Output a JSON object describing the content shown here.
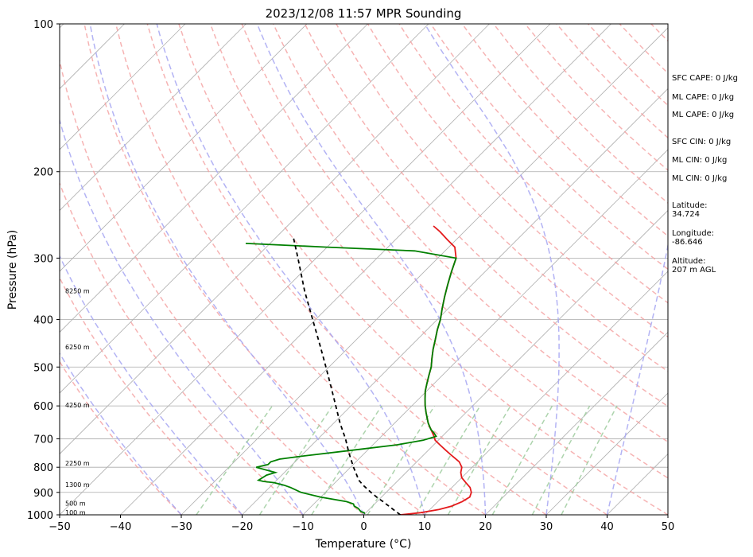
{
  "chart_data": {
    "type": "line",
    "title": "2023/12/08 11:57 MPR Sounding",
    "xlabel": "Temperature (°C)",
    "ylabel": "Pressure (hPa)",
    "xlim": [
      -50,
      50
    ],
    "ylim": [
      1000,
      100
    ],
    "y_scale": "log",
    "skew": "skew-T",
    "x_ticks": [
      "−50",
      "−40",
      "−30",
      "−20",
      "−10",
      "0",
      "10",
      "20",
      "30",
      "40",
      "50"
    ],
    "y_ticks": [
      "100",
      "200",
      "300",
      "400",
      "500",
      "600",
      "700",
      "800",
      "900",
      "1000"
    ],
    "grid": true,
    "height_labels": [
      {
        "text": "8250 m",
        "pressure": 350
      },
      {
        "text": "6250 m",
        "pressure": 455
      },
      {
        "text": "4250 m",
        "pressure": 597
      },
      {
        "text": "2250 m",
        "pressure": 785
      },
      {
        "text": "1300 m",
        "pressure": 867
      },
      {
        "text": "500 m",
        "pressure": 947
      },
      {
        "text": "100 m",
        "pressure": 989
      }
    ],
    "series": [
      {
        "color": "#e41a1c",
        "points": [
          [
            1000,
            6.0
          ],
          [
            990,
            9.0
          ],
          [
            975,
            11.5
          ],
          [
            960,
            13.0
          ],
          [
            940,
            14.0
          ],
          [
            920,
            14.5
          ],
          [
            900,
            14.0
          ],
          [
            880,
            13.0
          ],
          [
            860,
            11.5
          ],
          [
            840,
            10.0
          ],
          [
            820,
            9.0
          ],
          [
            800,
            8.3
          ],
          [
            780,
            7.0
          ],
          [
            760,
            5.0
          ],
          [
            740,
            3.0
          ],
          [
            720,
            1.0
          ],
          [
            705,
            -0.5
          ],
          [
            690,
            -1.5
          ],
          [
            670,
            -3.0
          ],
          [
            650,
            -4.5
          ],
          [
            620,
            -6.5
          ],
          [
            600,
            -7.8
          ],
          [
            580,
            -9.0
          ],
          [
            560,
            -10.2
          ],
          [
            540,
            -11.2
          ],
          [
            520,
            -12.2
          ],
          [
            500,
            -13.2
          ],
          [
            480,
            -14.5
          ],
          [
            460,
            -15.8
          ],
          [
            440,
            -17.0
          ],
          [
            420,
            -18.3
          ],
          [
            400,
            -19.5
          ],
          [
            380,
            -21.0
          ],
          [
            360,
            -22.5
          ],
          [
            340,
            -24.0
          ],
          [
            320,
            -25.5
          ],
          [
            300,
            -27.0
          ],
          [
            285,
            -29.0
          ],
          [
            275,
            -31.5
          ],
          [
            265,
            -34.0
          ],
          [
            258,
            -36.0
          ]
        ]
      },
      {
        "color": "#008000",
        "points": [
          [
            995,
            0.0
          ],
          [
            990,
            -0.3
          ],
          [
            985,
            -1.0
          ],
          [
            970,
            -2.0
          ],
          [
            960,
            -3.0
          ],
          [
            950,
            -3.5
          ],
          [
            940,
            -5.0
          ],
          [
            920,
            -10.0
          ],
          [
            900,
            -14.0
          ],
          [
            880,
            -16.5
          ],
          [
            870,
            -18.0
          ],
          [
            860,
            -20.0
          ],
          [
            855,
            -22.0
          ],
          [
            850,
            -23.0
          ],
          [
            830,
            -22.5
          ],
          [
            820,
            -21.5
          ],
          [
            810,
            -23.5
          ],
          [
            800,
            -25.5
          ],
          [
            790,
            -24.0
          ],
          [
            780,
            -24.0
          ],
          [
            770,
            -23.0
          ],
          [
            760,
            -20.0
          ],
          [
            740,
            -13.0
          ],
          [
            720,
            -6.0
          ],
          [
            705,
            -2.5
          ],
          [
            692,
            -1.0
          ],
          [
            680,
            -2.0
          ],
          [
            670,
            -3.0
          ],
          [
            650,
            -4.5
          ],
          [
            620,
            -6.5
          ],
          [
            600,
            -7.8
          ],
          [
            580,
            -9.0
          ],
          [
            560,
            -10.2
          ],
          [
            540,
            -11.2
          ],
          [
            520,
            -12.2
          ],
          [
            500,
            -13.2
          ],
          [
            480,
            -14.5
          ],
          [
            460,
            -15.8
          ],
          [
            440,
            -17.0
          ],
          [
            420,
            -18.3
          ],
          [
            400,
            -19.5
          ],
          [
            380,
            -21.0
          ],
          [
            360,
            -22.5
          ],
          [
            340,
            -24.0
          ],
          [
            320,
            -25.5
          ],
          [
            300,
            -27.0
          ],
          [
            290,
            -35.0
          ],
          [
            285,
            -50.0
          ],
          [
            280,
            -64.0
          ]
        ]
      },
      {
        "color": "#000000",
        "dashed": true,
        "points": [
          [
            1000,
            6.0
          ],
          [
            960,
            2.7
          ],
          [
            940,
            1.0
          ],
          [
            920,
            -0.8
          ],
          [
            900,
            -2.5
          ],
          [
            870,
            -5.0
          ],
          [
            850,
            -6.5
          ],
          [
            800,
            -9.5
          ],
          [
            750,
            -12.5
          ],
          [
            700,
            -15.5
          ],
          [
            650,
            -19.0
          ],
          [
            600,
            -22.5
          ],
          [
            550,
            -26.3
          ],
          [
            500,
            -30.5
          ],
          [
            450,
            -35.2
          ],
          [
            400,
            -40.5
          ],
          [
            350,
            -46.5
          ],
          [
            300,
            -53.0
          ],
          [
            270,
            -57.5
          ]
        ]
      }
    ],
    "side_text": {
      "sfc_cape": "SFC CAPE: 0 J/kg",
      "ml_cape_1": "ML CAPE: 0 J/kg",
      "ml_cape_2": "ML CAPE: 0 J/kg",
      "sfc_cin": "SFC CIN: 0 J/kg",
      "ml_cin_1": "ML CIN: 0 J/kg",
      "ml_cin_2": "ML CIN: 0 J/kg",
      "latitude_label": "Latitude:",
      "latitude_value": "34.724",
      "longitude_label": "Longitude:",
      "longitude_value": "-86.646",
      "altitude_label": "Altitude:",
      "altitude_value": "207 m AGL"
    }
  }
}
